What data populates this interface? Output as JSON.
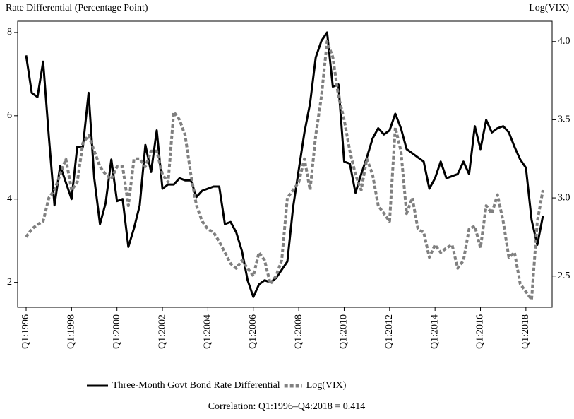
{
  "chart_data": {
    "type": "line",
    "y_label": "Rate Differential (Percentage Point)",
    "y2_label": "Log(VIX)",
    "note": "Correlation: Q1:1996–Q4:2018 = 0.414",
    "categories": [
      "Q1:1996",
      null,
      null,
      null,
      null,
      null,
      null,
      null,
      "Q1:1998",
      null,
      null,
      null,
      null,
      null,
      null,
      null,
      "Q1:2000",
      null,
      null,
      null,
      null,
      null,
      null,
      null,
      "Q1:2002",
      null,
      null,
      null,
      null,
      null,
      null,
      null,
      "Q1:2004",
      null,
      null,
      null,
      null,
      null,
      null,
      null,
      "Q1:2006",
      null,
      null,
      null,
      null,
      null,
      null,
      null,
      "Q1:2008",
      null,
      null,
      null,
      null,
      null,
      null,
      null,
      "Q1:2010",
      null,
      null,
      null,
      null,
      null,
      null,
      null,
      "Q1:2012",
      null,
      null,
      null,
      null,
      null,
      null,
      null,
      "Q1:2014",
      null,
      null,
      null,
      null,
      null,
      null,
      null,
      "Q1:2016",
      null,
      null,
      null,
      null,
      null,
      null,
      null,
      "Q1:2018",
      null,
      null,
      null
    ],
    "series": [
      {
        "name": "Three-Month Govt Bond Rate Differential",
        "color": "#000000",
        "dashed": false,
        "values": [
          7.45,
          6.55,
          6.45,
          7.3,
          5.5,
          3.85,
          4.8,
          4.4,
          4.0,
          5.25,
          5.25,
          6.55,
          4.5,
          3.4,
          3.9,
          4.95,
          3.95,
          4.0,
          2.85,
          3.3,
          3.85,
          5.3,
          4.65,
          5.65,
          4.25,
          4.35,
          4.35,
          4.5,
          4.45,
          4.45,
          4.05,
          4.2,
          4.25,
          4.3,
          4.3,
          3.4,
          3.45,
          3.2,
          2.75,
          2.05,
          1.65,
          1.95,
          2.05,
          2.0,
          2.1,
          2.3,
          2.5,
          3.8,
          4.7,
          5.6,
          6.3,
          7.4,
          7.8,
          8.0,
          6.7,
          6.75,
          4.9,
          4.85,
          4.15,
          4.6,
          5.0,
          5.45,
          5.7,
          5.55,
          5.65,
          6.05,
          5.7,
          5.2,
          5.1,
          5.0,
          4.9,
          4.25,
          4.5,
          4.9,
          4.5,
          4.55,
          4.6,
          4.9,
          4.6,
          5.75,
          5.2,
          5.9,
          5.6,
          5.7,
          5.75,
          5.6,
          5.25,
          4.95,
          4.75,
          3.5,
          2.9,
          3.6
        ]
      },
      {
        "name": "Log(VIX)",
        "color": "#808080",
        "dashed": true,
        "axis": "y2",
        "values": [
          2.75,
          2.8,
          2.83,
          2.85,
          3.0,
          3.05,
          3.15,
          3.25,
          3.05,
          3.1,
          3.35,
          3.4,
          3.3,
          3.2,
          3.15,
          3.12,
          3.2,
          3.2,
          2.95,
          3.25,
          3.25,
          3.2,
          3.3,
          3.3,
          3.15,
          3.1,
          3.55,
          3.5,
          3.4,
          3.15,
          2.95,
          2.85,
          2.8,
          2.78,
          2.72,
          2.65,
          2.58,
          2.55,
          2.6,
          2.55,
          2.5,
          2.65,
          2.6,
          2.45,
          2.5,
          2.6,
          3.0,
          3.05,
          3.1,
          3.25,
          3.05,
          3.4,
          3.65,
          4.0,
          3.9,
          3.65,
          3.5,
          3.3,
          3.15,
          3.05,
          3.25,
          3.15,
          2.95,
          2.9,
          2.85,
          3.45,
          3.3,
          2.9,
          3.0,
          2.8,
          2.78,
          2.62,
          2.7,
          2.65,
          2.68,
          2.7,
          2.55,
          2.6,
          2.8,
          2.82,
          2.68,
          2.95,
          2.9,
          3.02,
          2.85,
          2.62,
          2.65,
          2.45,
          2.4,
          2.35,
          2.85,
          3.05
        ]
      }
    ],
    "ylim": [
      1.4,
      8.27
    ],
    "yticks": [
      2,
      4,
      6,
      8
    ],
    "y2lim": [
      2.3,
      4.13
    ],
    "y2ticks": [
      2.5,
      {
        "value": 3,
        "label": "3.0"
      },
      3.5,
      {
        "value": 4,
        "label": "4.0"
      }
    ]
  }
}
